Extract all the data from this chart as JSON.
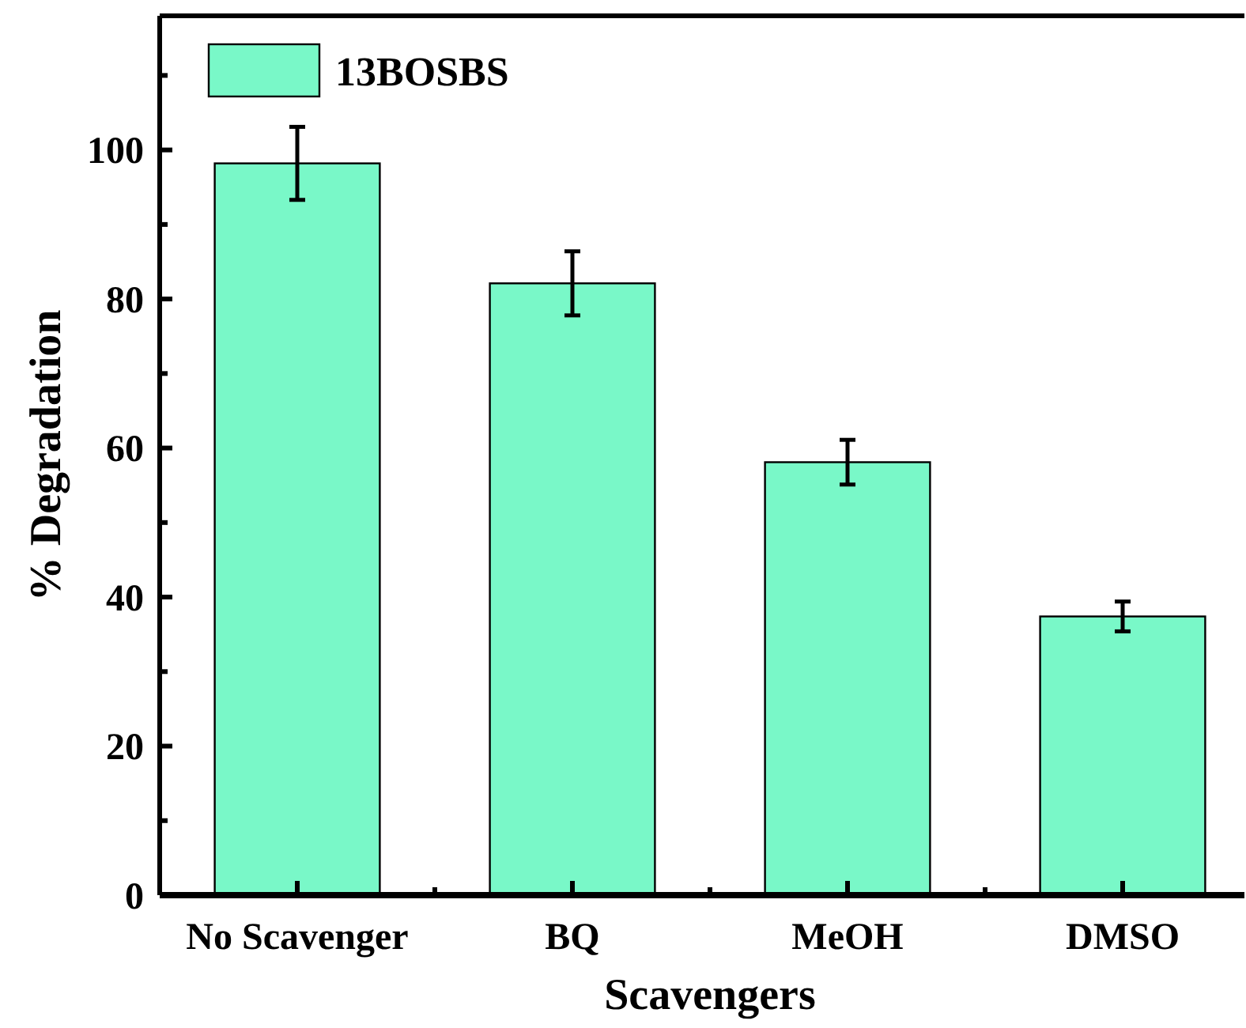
{
  "chart_data": {
    "type": "bar",
    "xlabel": "Scavengers",
    "ylabel": "% Degradation",
    "categories": [
      "No Scavenger",
      "BQ",
      "MeOH",
      "DMSO"
    ],
    "series": [
      {
        "name": "13BOSBS",
        "color": "#79f8c8",
        "values": [
          98.2,
          82.1,
          58.1,
          37.4
        ],
        "errors": [
          4.9,
          4.3,
          3.0,
          2.0
        ]
      }
    ],
    "ylim": [
      0,
      118
    ],
    "yticks": [
      0,
      20,
      40,
      60,
      80,
      100
    ],
    "grid": false,
    "legend": "top left"
  }
}
